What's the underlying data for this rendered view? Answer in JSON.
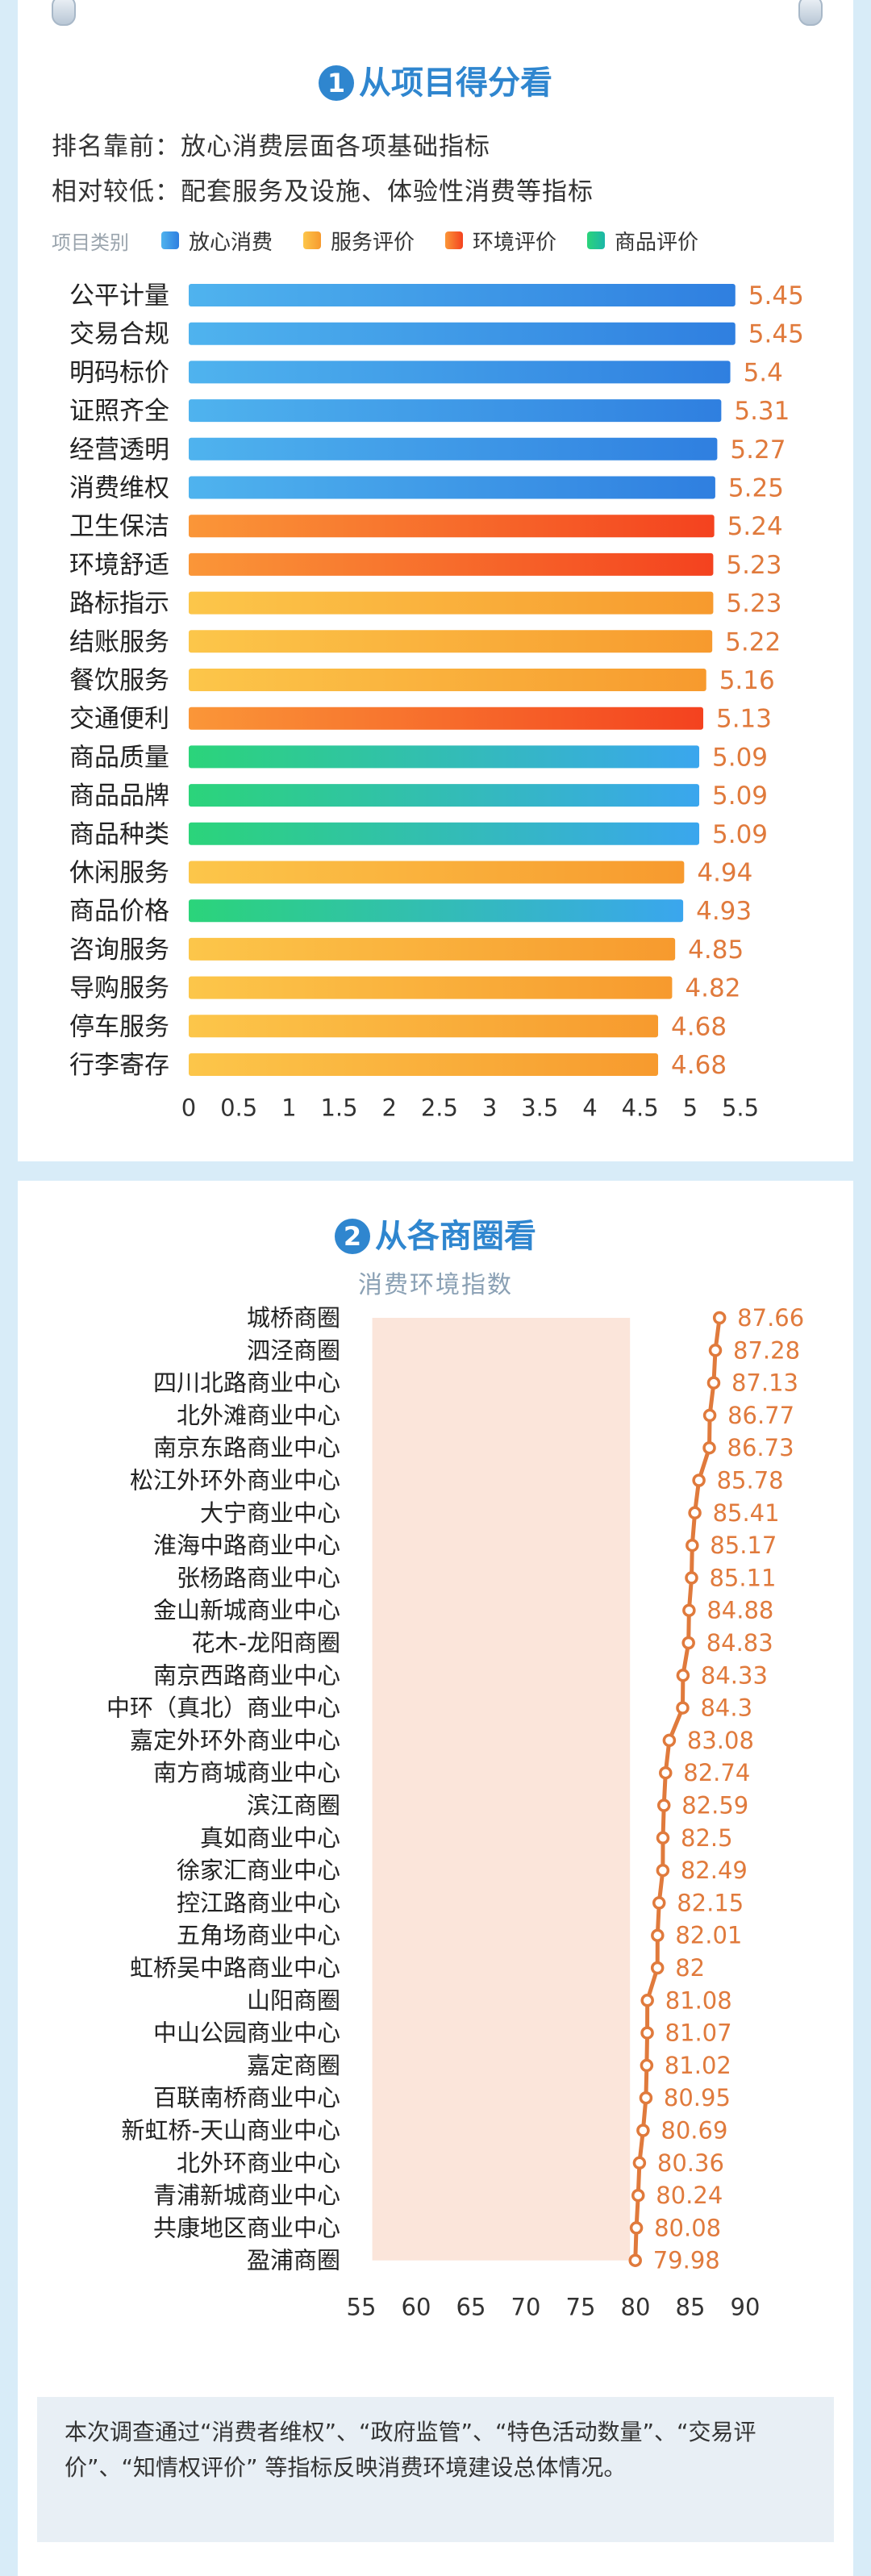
{
  "section1": {
    "number": "1",
    "title": "从项目得分看",
    "line1": "排名靠前：放心消费层面各项基础指标",
    "line2": "相对较低：配套服务及设施、体验性消费等指标",
    "legend_title": "项目类别",
    "legend": [
      {
        "label": "放心消费",
        "color": "#2f8be0"
      },
      {
        "label": "服务评价",
        "color": "#f7a63c"
      },
      {
        "label": "环境评价",
        "color": "#f6522c"
      },
      {
        "label": "商品评价",
        "color": "#22c58d"
      }
    ]
  },
  "section2": {
    "number": "2",
    "title": "从各商圈看",
    "subtitle": "消费环境指数"
  },
  "note": {
    "text": "本次调查通过“消费者维权”、“政府监管”、“特色活动数量”、“交易评价”、“知情权评价” 等指标反映消费环境建设总体情况。"
  },
  "chart_data": [
    {
      "type": "bar",
      "orientation": "horizontal",
      "categories": [
        "公平计量",
        "交易合规",
        "明码标价",
        "证照齐全",
        "经营透明",
        "消费维权",
        "卫生保洁",
        "环境舒适",
        "路标指示",
        "结账服务",
        "餐饮服务",
        "交通便利",
        "商品质量",
        "商品品牌",
        "商品种类",
        "休闲服务",
        "商品价格",
        "咨询服务",
        "导购服务",
        "停车服务",
        "行李寄存"
      ],
      "values": [
        5.45,
        5.45,
        5.4,
        5.31,
        5.27,
        5.25,
        5.24,
        5.23,
        5.23,
        5.22,
        5.16,
        5.13,
        5.09,
        5.09,
        5.09,
        4.94,
        4.93,
        4.85,
        4.82,
        4.68,
        4.68
      ],
      "value_labels": [
        "5.45",
        "5.45",
        "5.4",
        "5.31",
        "5.27",
        "5.25",
        "5.24",
        "5.23",
        "5.23",
        "5.22",
        "5.16",
        "5.13",
        "5.09",
        "5.09",
        "5.09",
        "4.94",
        "4.93",
        "4.85",
        "4.82",
        "4.68",
        "4.68"
      ],
      "groups": [
        "放心消费",
        "放心消费",
        "放心消费",
        "放心消费",
        "放心消费",
        "放心消费",
        "环境评价",
        "环境评价",
        "服务评价",
        "服务评价",
        "服务评价",
        "环境评价",
        "商品评价",
        "商品评价",
        "商品评价",
        "服务评价",
        "商品评价",
        "服务评价",
        "服务评价",
        "服务评价",
        "服务评价"
      ],
      "xlim": [
        0,
        5.5
      ],
      "xticks": [
        "0",
        "0.5",
        "1",
        "1.5",
        "2",
        "2.5",
        "3",
        "3.5",
        "4",
        "4.5",
        "5",
        "5.5"
      ],
      "grid": false
    },
    {
      "type": "line",
      "orientation": "horizontal",
      "categories": [
        "城桥商圈",
        "泗泾商圈",
        "四川北路商业中心",
        "北外滩商业中心",
        "南京东路商业中心",
        "松江外环外商业中心",
        "大宁商业中心",
        "淮海中路商业中心",
        "张杨路商业中心",
        "金山新城商业中心",
        "花木-龙阳商圈",
        "南京西路商业中心",
        "中环（真北）商业中心",
        "嘉定外环外商业中心",
        "南方商城商业中心",
        "滨江商圈",
        "真如商业中心",
        "徐家汇商业中心",
        "控江路商业中心",
        "五角场商业中心",
        "虹桥吴中路商业中心",
        "山阳商圈",
        "中山公园商业中心",
        "嘉定商圈",
        "百联南桥商业中心",
        "新虹桥-天山商业中心",
        "北外环商业中心",
        "青浦新城商业中心",
        "共康地区商业中心",
        "盈浦商圈"
      ],
      "values": [
        87.66,
        87.28,
        87.13,
        86.77,
        86.73,
        85.78,
        85.41,
        85.17,
        85.11,
        84.88,
        84.83,
        84.33,
        84.3,
        83.08,
        82.74,
        82.59,
        82.5,
        82.49,
        82.15,
        82.01,
        82,
        81.08,
        81.07,
        81.02,
        80.95,
        80.69,
        80.36,
        80.24,
        80.08,
        79.98
      ],
      "value_labels": [
        "87.66",
        "87.28",
        "87.13",
        "86.77",
        "86.73",
        "85.78",
        "85.41",
        "85.17",
        "85.11",
        "84.88",
        "84.83",
        "84.33",
        "84.3",
        "83.08",
        "82.74",
        "82.59",
        "82.5",
        "82.49",
        "82.15",
        "82.01",
        "82",
        "81.08",
        "81.07",
        "81.02",
        "80.95",
        "80.69",
        "80.36",
        "80.24",
        "80.08",
        "79.98"
      ],
      "color": "#e07a3c",
      "xlim": [
        55,
        90
      ],
      "xticks": [
        "55",
        "60",
        "65",
        "70",
        "75",
        "80",
        "85",
        "90"
      ],
      "grid": false
    }
  ]
}
